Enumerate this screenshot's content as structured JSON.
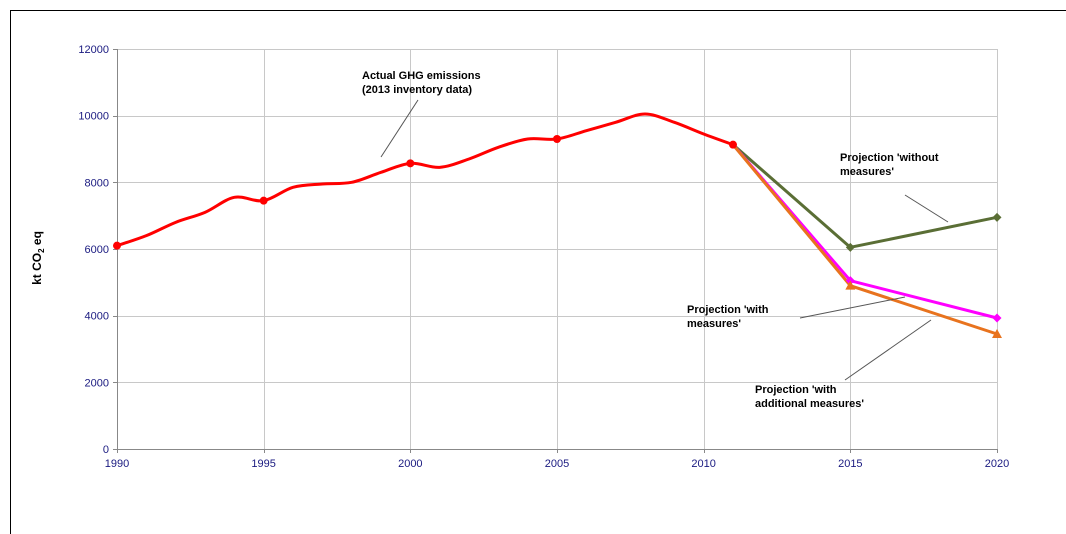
{
  "chart_data": {
    "type": "line",
    "ylabel_main": "kt CO",
    "ylabel_sub": "2",
    "ylabel_end": " eq",
    "xlim": [
      1990,
      2020
    ],
    "ylim": [
      0,
      12000
    ],
    "x_ticks": [
      "1990",
      "1995",
      "2000",
      "2005",
      "2010",
      "2015",
      "2020"
    ],
    "y_ticks": [
      "0",
      "2000",
      "4000",
      "6000",
      "8000",
      "10000",
      "12000"
    ],
    "grid": true,
    "colors": {
      "historical": "#ff0000",
      "without": "#5a6e35",
      "with": "#ff00ff",
      "additional": "#e8731e",
      "axis": "#888888",
      "grid": "#c8c8c8",
      "leader": "#555555"
    },
    "series": [
      {
        "key": "historical",
        "x": [
          1990,
          1991,
          1992,
          1993,
          1994,
          1995,
          1996,
          1997,
          1998,
          1999,
          2000,
          2001,
          2002,
          2003,
          2004,
          2005,
          2006,
          2007,
          2008,
          2009,
          2010,
          2011
        ],
        "y": [
          6100,
          6400,
          6800,
          7100,
          7550,
          7450,
          7850,
          7950,
          8000,
          8300,
          8570,
          8450,
          8700,
          9050,
          9300,
          9300,
          9550,
          9800,
          10050,
          9800,
          9450,
          9130
        ],
        "markers_at": [
          1990,
          1995,
          2000,
          2005,
          2011
        ],
        "marker": "circle",
        "smooth": true
      },
      {
        "key": "without",
        "x": [
          2011,
          2015,
          2020
        ],
        "y": [
          9130,
          6050,
          6950
        ],
        "markers_at": [
          2015,
          2020
        ],
        "marker": "diamond",
        "smooth": false
      },
      {
        "key": "with",
        "x": [
          2011,
          2015,
          2020
        ],
        "y": [
          9130,
          5050,
          3930
        ],
        "markers_at": [
          2015,
          2020
        ],
        "marker": "diamond",
        "smooth": false
      },
      {
        "key": "additional",
        "x": [
          2011,
          2015,
          2020
        ],
        "y": [
          9130,
          4900,
          3450
        ],
        "markers_at": [
          2015,
          2020
        ],
        "marker": "triangle",
        "smooth": false
      }
    ],
    "annotations": [
      {
        "key": "historical",
        "lines": [
          "Actual GHG emissions",
          "(2013  inventory data)"
        ]
      },
      {
        "key": "without",
        "lines": [
          "Projection 'without",
          "measures'"
        ]
      },
      {
        "key": "with",
        "lines": [
          "Projection 'with",
          "measures'"
        ]
      },
      {
        "key": "additional",
        "lines": [
          "Projection 'with",
          "additional  measures'"
        ]
      }
    ]
  }
}
